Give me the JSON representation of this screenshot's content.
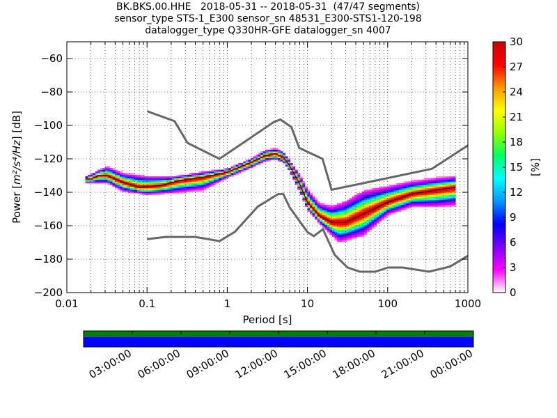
{
  "title_lines": [
    "BK.BKS.00.HHE   2018-05-31 -- 2018-05-31  (47/47 segments)",
    "sensor_type STS-1_E300 sensor_sn 48531_E300-STS1-120-198",
    "datalogger_type Q330HR-GFE datalogger_sn 4007"
  ],
  "chart_data": {
    "type": "heatmap",
    "xlabel": "Period [s]",
    "ylabel_prefix": "Power [",
    "ylabel_units": "m²/s⁴/Hz",
    "ylabel_suffix": "] [dB]",
    "xscale": "log",
    "xlim": [
      0.01,
      1000
    ],
    "ylim": [
      -200,
      -50
    ],
    "x_ticks": [
      0.01,
      0.1,
      1,
      10,
      100,
      1000
    ],
    "x_tick_labels": [
      "0.01",
      "0.1",
      "1",
      "10",
      "100",
      "1000"
    ],
    "y_ticks": [
      -60,
      -80,
      -100,
      -120,
      -140,
      -160,
      -180,
      -200
    ],
    "y_tick_labels": [
      "−60",
      "−80",
      "−100",
      "−120",
      "−140",
      "−160",
      "−180",
      "−200"
    ],
    "colorbar": {
      "label": "[%]",
      "min": 0,
      "max": 30,
      "ticks": [
        0,
        3,
        6,
        9,
        12,
        15,
        18,
        21,
        24,
        27,
        30
      ],
      "tick_labels": [
        "0",
        "3",
        "6",
        "9",
        "12",
        "15",
        "18",
        "21",
        "24",
        "27",
        "30"
      ],
      "colors": [
        "#ffffff",
        "#ff00ff",
        "#7b00ff",
        "#0000ff",
        "#0096ff",
        "#00ffff",
        "#00ff64",
        "#96ff00",
        "#ffff00",
        "#ff9600",
        "#ff0000",
        "#c80000"
      ]
    },
    "noise_model_high": [
      [
        0.1,
        -91.5
      ],
      [
        0.22,
        -97.4
      ],
      [
        0.32,
        -110.5
      ],
      [
        0.8,
        -120
      ],
      [
        3.8,
        -98
      ],
      [
        4.6,
        -96.5
      ],
      [
        6.3,
        -101
      ],
      [
        7.9,
        -113.5
      ],
      [
        15.4,
        -120
      ],
      [
        20,
        -138.5
      ],
      [
        354.8,
        -126
      ],
      [
        1000,
        -112
      ]
    ],
    "noise_model_low": [
      [
        0.1,
        -168
      ],
      [
        0.17,
        -166.7
      ],
      [
        0.4,
        -166.7
      ],
      [
        0.8,
        -169.2
      ],
      [
        1.24,
        -163.7
      ],
      [
        2.4,
        -148.6
      ],
      [
        4.3,
        -141.1
      ],
      [
        5,
        -141.1
      ],
      [
        6,
        -149
      ],
      [
        10,
        -163.8
      ],
      [
        12,
        -166.2
      ],
      [
        15.6,
        -162.1
      ],
      [
        21.9,
        -177.5
      ],
      [
        31.6,
        -185
      ],
      [
        45,
        -187.5
      ],
      [
        70,
        -187.5
      ],
      [
        101,
        -185
      ],
      [
        154,
        -185
      ],
      [
        328,
        -187.5
      ],
      [
        600,
        -184.4
      ],
      [
        1000,
        -178
      ]
    ],
    "mean_curve": [
      [
        0.02,
        -132
      ],
      [
        0.025,
        -130
      ],
      [
        0.032,
        -130
      ],
      [
        0.05,
        -134
      ],
      [
        0.08,
        -137
      ],
      [
        0.15,
        -136
      ],
      [
        0.25,
        -133
      ],
      [
        0.5,
        -131
      ],
      [
        1,
        -128
      ],
      [
        2,
        -122
      ],
      [
        3,
        -118
      ],
      [
        4,
        -117
      ],
      [
        5,
        -119
      ],
      [
        6,
        -124
      ],
      [
        8,
        -135
      ],
      [
        10,
        -146
      ],
      [
        14,
        -154
      ],
      [
        20,
        -158
      ],
      [
        30,
        -158
      ],
      [
        50,
        -153
      ],
      [
        100,
        -146
      ],
      [
        200,
        -141
      ],
      [
        500,
        -138
      ],
      [
        700,
        -137
      ]
    ],
    "spread_upper": [
      [
        0.017,
        -131
      ],
      [
        0.025,
        -127
      ],
      [
        0.032,
        -125
      ],
      [
        0.05,
        -129
      ],
      [
        0.1,
        -131
      ],
      [
        0.2,
        -131
      ],
      [
        0.5,
        -128
      ],
      [
        1,
        -126
      ],
      [
        2,
        -120
      ],
      [
        3,
        -115
      ],
      [
        4,
        -114
      ],
      [
        5,
        -116
      ],
      [
        6,
        -121
      ],
      [
        8,
        -130
      ],
      [
        10,
        -139
      ],
      [
        14,
        -147
      ],
      [
        20,
        -149
      ],
      [
        30,
        -146
      ],
      [
        50,
        -140
      ],
      [
        100,
        -137
      ],
      [
        200,
        -134
      ],
      [
        400,
        -132
      ],
      [
        700,
        -131
      ]
    ],
    "spread_lower": [
      [
        0.017,
        -134
      ],
      [
        0.025,
        -134
      ],
      [
        0.032,
        -134
      ],
      [
        0.05,
        -139
      ],
      [
        0.1,
        -141
      ],
      [
        0.2,
        -140
      ],
      [
        0.5,
        -138
      ],
      [
        1,
        -131
      ],
      [
        2,
        -125
      ],
      [
        3,
        -121
      ],
      [
        4,
        -120
      ],
      [
        5,
        -122
      ],
      [
        6,
        -127
      ],
      [
        8,
        -139
      ],
      [
        10,
        -150
      ],
      [
        14,
        -158
      ],
      [
        20,
        -165
      ],
      [
        25,
        -169
      ],
      [
        30,
        -168
      ],
      [
        50,
        -165
      ],
      [
        100,
        -153
      ],
      [
        200,
        -148
      ],
      [
        400,
        -148
      ],
      [
        700,
        -147
      ]
    ]
  },
  "availability": {
    "time_labels": [
      "03:00:00",
      "06:00:00",
      "09:00:00",
      "12:00:00",
      "15:00:00",
      "18:00:00",
      "21:00:00",
      "00:00:00"
    ],
    "data_color": "#008000",
    "gap_color": "#0000ff"
  }
}
